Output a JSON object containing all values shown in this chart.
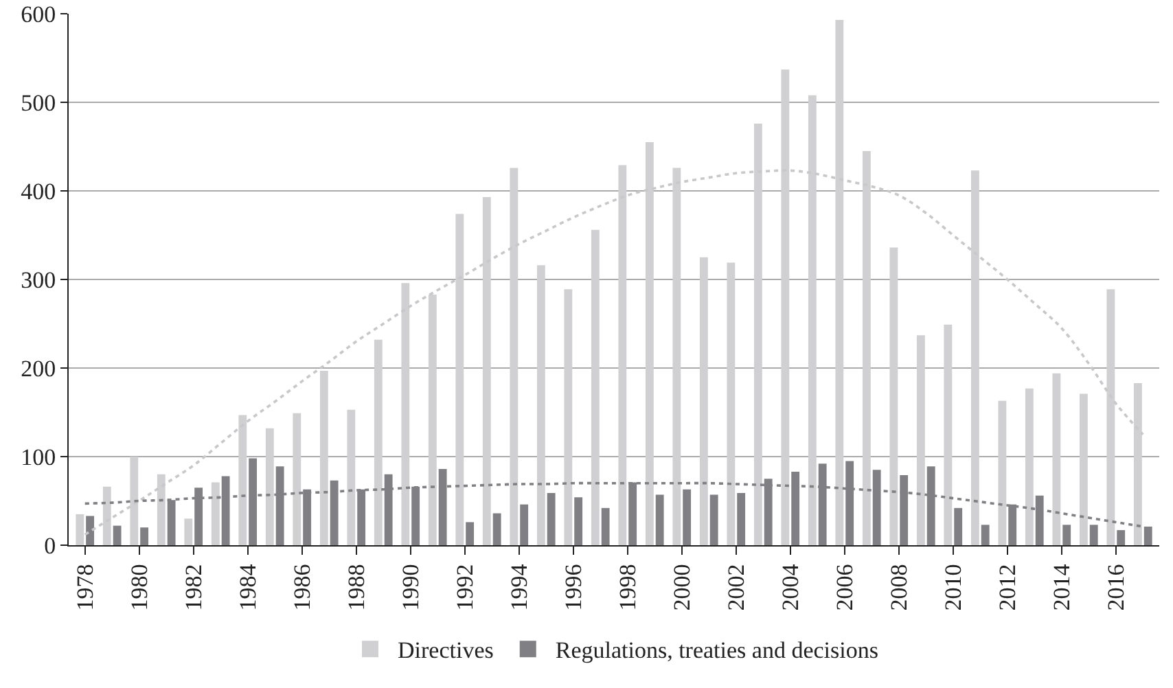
{
  "chart_data": {
    "type": "bar",
    "categories": [
      "1978",
      null,
      "1980",
      null,
      "1982",
      null,
      "1984",
      null,
      "1986",
      null,
      "1988",
      null,
      "1990",
      null,
      "1992",
      null,
      "1994",
      null,
      "1996",
      null,
      "1998",
      null,
      "2000",
      null,
      "2002",
      null,
      "2004",
      null,
      "2006",
      null,
      "2008",
      null,
      "2010",
      null,
      "2012",
      null,
      "2014",
      null,
      "2016",
      null
    ],
    "series": [
      {
        "name": "Directives",
        "color": "#d0d0d2",
        "values": [
          35,
          66,
          100,
          80,
          30,
          71,
          147,
          132,
          149,
          197,
          153,
          232,
          296,
          283,
          374,
          393,
          426,
          316,
          289,
          356,
          429,
          455,
          426,
          325,
          319,
          476,
          537,
          508,
          593,
          445,
          336,
          237,
          249,
          423,
          163,
          177,
          194,
          171,
          289,
          183
        ]
      },
      {
        "name": "Regulations, treaties and decisions",
        "color": "#808084",
        "values": [
          33,
          22,
          20,
          51,
          65,
          78,
          98,
          89,
          63,
          73,
          63,
          80,
          66,
          86,
          26,
          36,
          46,
          59,
          54,
          42,
          71,
          57,
          63,
          57,
          59,
          75,
          83,
          92,
          95,
          85,
          79,
          89,
          42,
          23,
          46,
          56,
          23,
          23,
          17,
          21
        ]
      },
      {
        "type": "line",
        "color": "#c8c8ca",
        "line_style": "dotted",
        "marker": "none",
        "values": [
          12,
          31,
          50,
          70,
          90,
          115,
          140,
          162,
          185,
          207,
          230,
          250,
          270,
          288,
          305,
          323,
          340,
          355,
          370,
          383,
          395,
          403,
          410,
          415,
          420,
          422,
          423,
          419,
          412,
          405,
          395,
          375,
          350,
          325,
          300,
          273,
          245,
          205,
          160,
          125
        ]
      },
      {
        "type": "line",
        "color": "#808084",
        "line_style": "dotted",
        "marker": "none",
        "values": [
          47,
          48,
          50,
          51,
          53,
          54,
          56,
          57,
          59,
          60,
          62,
          63,
          65,
          66,
          67,
          68,
          69,
          69,
          70,
          70,
          70,
          70,
          70,
          70,
          69,
          68,
          67,
          66,
          64,
          62,
          60,
          57,
          53,
          49,
          45,
          41,
          36,
          31,
          26,
          21
        ]
      }
    ],
    "ylim": [
      0,
      600
    ],
    "yticks": [
      0,
      100,
      200,
      300,
      400,
      500,
      600
    ],
    "grid": "y",
    "legend": "bottom"
  }
}
